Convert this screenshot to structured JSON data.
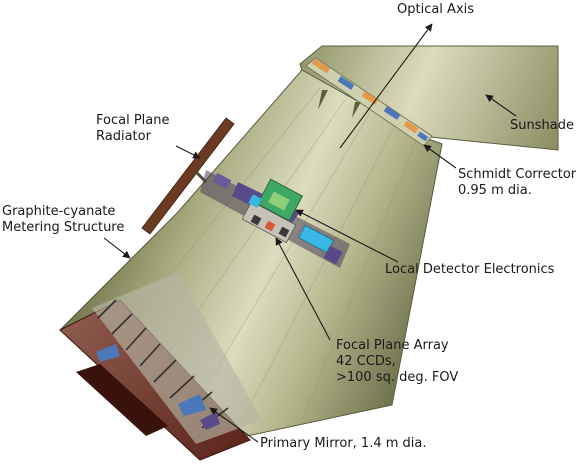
{
  "diagram": {
    "labels": {
      "optical_axis": "Optical Axis",
      "focal_plane_radiator": [
        "Focal Plane",
        "Radiator"
      ],
      "sunshade": "Sunshade",
      "schmidt_corrector": [
        "Schmidt Corrector",
        "0.95 m dia."
      ],
      "metering_structure": [
        "Graphite-cyanate",
        "Metering Structure"
      ],
      "local_detector_electronics": "Local Detector Electronics",
      "focal_plane_array": [
        "Focal Plane Array",
        "42 CCDs,",
        ">100 sq. deg. FOV"
      ],
      "primary_mirror": "Primary Mirror, 1.4 m dia."
    },
    "colors": {
      "tube_light": "#e3e4c8",
      "tube_mid": "#b7b98f",
      "tube_dark": "#75784f",
      "radiator": "#6b3a22",
      "corrector_orange": "#e39a4a",
      "corrector_blue": "#4a78b8",
      "mirror_base": "#6a2a20",
      "fpa_green": "#3fa864",
      "fpa_cyan": "#38b6e4",
      "fpa_purple": "#5a4a8a"
    }
  }
}
